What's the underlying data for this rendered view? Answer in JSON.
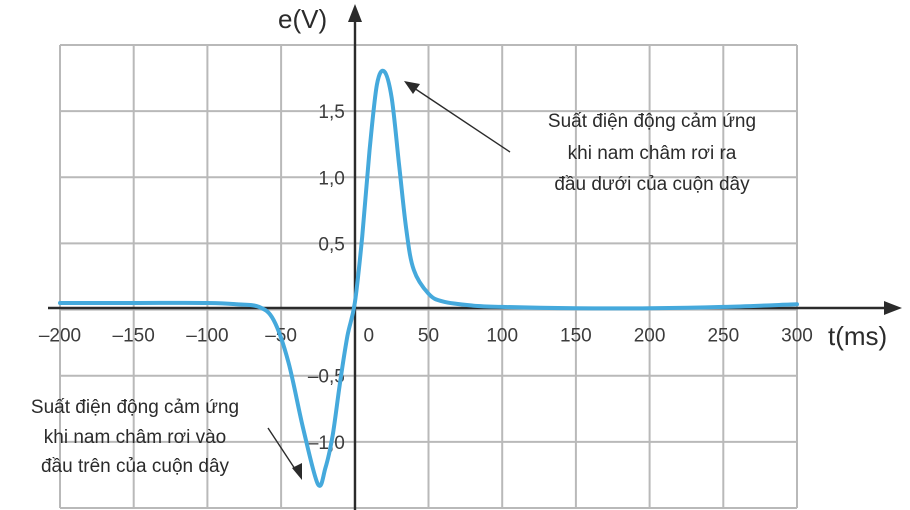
{
  "chart_data": {
    "type": "line",
    "xlabel": "t(ms)",
    "ylabel": "e(V)",
    "xlim": [
      -200,
      300
    ],
    "ylim": [
      -1.5,
      2.0
    ],
    "x_ticks": [
      -200,
      -150,
      -100,
      -50,
      0,
      50,
      100,
      150,
      200,
      250,
      300
    ],
    "x_tick_labels": [
      "–200",
      "–150",
      "–100",
      "–50",
      "0",
      "50",
      "100",
      "150",
      "200",
      "250",
      "300"
    ],
    "y_ticks": [
      -1.0,
      -0.5,
      0.5,
      1.0,
      1.5
    ],
    "y_tick_labels": [
      "–1,0",
      "–0,5",
      "0,5",
      "1,0",
      "1,5"
    ],
    "grid": true,
    "series": [
      {
        "color": "#45a9dc",
        "x": [
          -200,
          -150,
          -100,
          -80,
          -65,
          -55,
          -45,
          -35,
          -25,
          -20,
          -15,
          -10,
          -5,
          0,
          5,
          10,
          15,
          20,
          25,
          30,
          35,
          40,
          50,
          60,
          80,
          100,
          150,
          200,
          250,
          300
        ],
        "y": [
          0.05,
          0.05,
          0.05,
          0.04,
          0.02,
          -0.08,
          -0.4,
          -0.9,
          -1.32,
          -1.2,
          -0.95,
          -0.55,
          -0.2,
          0.05,
          0.55,
          1.2,
          1.7,
          1.8,
          1.6,
          1.1,
          0.6,
          0.3,
          0.12,
          0.06,
          0.03,
          0.02,
          0.01,
          0.01,
          0.02,
          0.04
        ]
      }
    ],
    "annotations": [
      {
        "lines": [
          "Suất điện động cảm ứng",
          "khi nam châm rơi ra",
          "đầu dưới của cuộn dây"
        ],
        "points_to": [
          20,
          1.8
        ]
      },
      {
        "lines": [
          "Suất điện động cảm ứng",
          "khi nam châm rơi vào",
          "đầu trên của cuộn dây"
        ],
        "points_to": [
          -25,
          -1.32
        ]
      }
    ]
  }
}
